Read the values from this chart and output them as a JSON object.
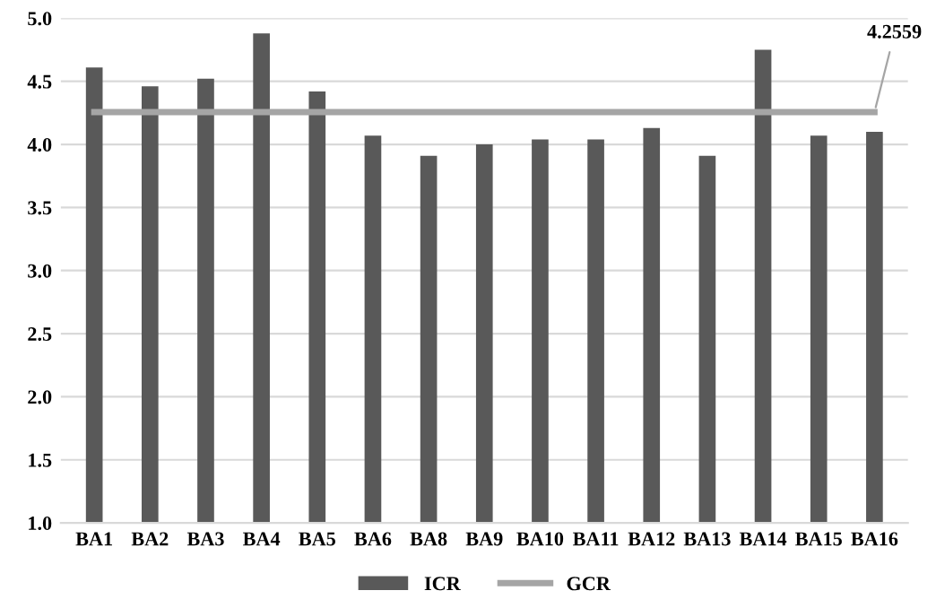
{
  "chart_data": {
    "type": "bar",
    "categories": [
      "BA1",
      "BA2",
      "BA3",
      "BA4",
      "BA5",
      "BA6",
      "BA8",
      "BA9",
      "BA10",
      "BA11",
      "BA12",
      "BA13",
      "BA14",
      "BA15",
      "BA16"
    ],
    "series": [
      {
        "name": "ICR",
        "color": "#595959",
        "values": [
          4.61,
          4.46,
          4.52,
          4.88,
          4.42,
          4.07,
          3.91,
          4.0,
          4.04,
          4.04,
          4.13,
          3.91,
          4.75,
          4.07,
          4.1
        ]
      },
      {
        "name": "GCR",
        "type": "line",
        "color": "#a5a5a5",
        "values": [
          4.2559,
          4.2559,
          4.2559,
          4.2559,
          4.2559,
          4.2559,
          4.2559,
          4.2559,
          4.2559,
          4.2559,
          4.2559,
          4.2559,
          4.2559,
          4.2559,
          4.2559
        ],
        "value_labels": [
          null,
          null,
          null,
          null,
          null,
          null,
          null,
          null,
          null,
          null,
          null,
          null,
          null,
          null,
          "4.2559"
        ]
      }
    ],
    "ylim": [
      1.0,
      5.0
    ],
    "yticks": [
      {
        "value": 1.0,
        "label": "1.0"
      },
      {
        "value": 1.5,
        "label": "1.5"
      },
      {
        "value": 2.0,
        "label": "2.0"
      },
      {
        "value": 2.5,
        "label": "2.5"
      },
      {
        "value": 3.0,
        "label": "3.0"
      },
      {
        "value": 3.5,
        "label": "3.5"
      },
      {
        "value": 4.0,
        "label": "4.0"
      },
      {
        "value": 4.5,
        "label": "4.5"
      },
      {
        "value": 5.0,
        "label": "5.0"
      }
    ],
    "grid": "y",
    "legend": "bottom"
  }
}
